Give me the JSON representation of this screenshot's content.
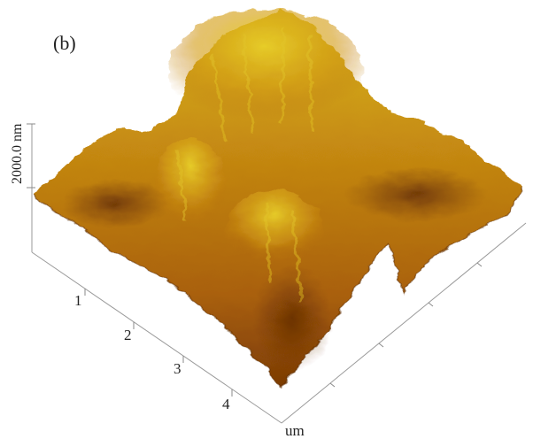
{
  "panel_label": "(b)",
  "z_scale_label": "2000.0 nm",
  "x_ticks": [
    "1",
    "2",
    "3",
    "4"
  ],
  "x_unit": "um",
  "colors": {
    "peak": "#e7d21f",
    "mid": "#c47a0e",
    "valley": "#6e3204",
    "axis": "#9a9a9a"
  }
}
